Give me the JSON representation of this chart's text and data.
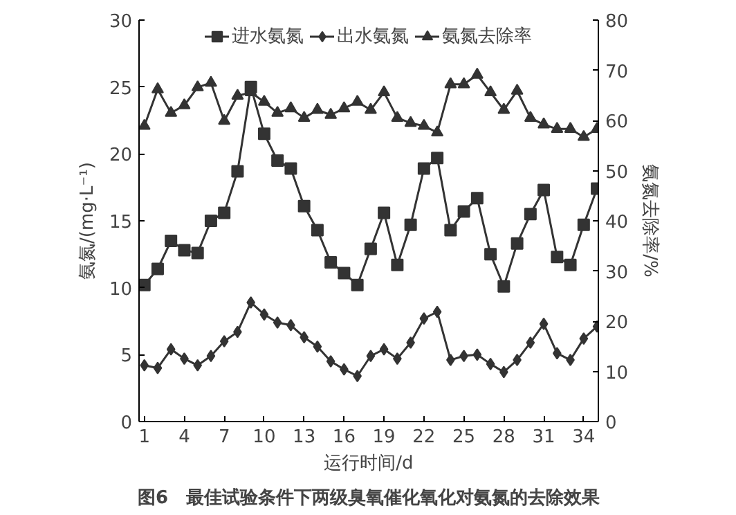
{
  "chart_data": {
    "type": "line",
    "xlabel": "运行时间/d",
    "ylabel": "氨氮/(mg·L⁻¹)",
    "y2label": "氨氮去除率/%",
    "x": [
      1,
      2,
      3,
      4,
      5,
      6,
      7,
      8,
      9,
      10,
      11,
      12,
      13,
      14,
      15,
      16,
      17,
      18,
      19,
      20,
      21,
      22,
      23,
      24,
      25,
      26,
      27,
      28,
      29,
      30,
      31,
      32,
      33,
      34,
      35
    ],
    "xlim": [
      0.6,
      35.1
    ],
    "xticks": [
      1,
      4,
      7,
      10,
      13,
      16,
      19,
      22,
      25,
      28,
      31,
      34
    ],
    "ylim": [
      0,
      30
    ],
    "yticks": [
      0,
      5,
      10,
      15,
      20,
      25,
      30
    ],
    "y2lim": [
      0,
      80
    ],
    "y2ticks": [
      0,
      10,
      20,
      30,
      40,
      50,
      60,
      70,
      80
    ],
    "grid": false,
    "legend": "top",
    "line_style": "solid",
    "annotations": [
      "图6　最佳试验条件下两级臭氧催化氧化对氨氮的去除效果"
    ],
    "series": [
      {
        "name": "进水氨氮",
        "color": "#333333",
        "marker": "square",
        "values": [
          10.2,
          11.4,
          13.5,
          12.8,
          12.6,
          15.0,
          15.6,
          18.7,
          25.0,
          21.5,
          19.5,
          18.9,
          16.1,
          14.3,
          11.9,
          11.1,
          10.2,
          12.9,
          15.6,
          11.7,
          14.7,
          18.9,
          19.7,
          14.3,
          15.7,
          16.7,
          12.5,
          10.1,
          13.3,
          15.5,
          17.3,
          12.3,
          11.7,
          14.7,
          17.4
        ]
      },
      {
        "name": "出水氨氮",
        "color": "#333333",
        "marker": "diamond",
        "values": [
          4.2,
          4.0,
          5.4,
          4.7,
          4.2,
          4.9,
          6.0,
          6.7,
          8.9,
          8.0,
          7.4,
          7.2,
          6.3,
          5.6,
          4.5,
          3.9,
          3.4,
          4.9,
          5.4,
          4.7,
          5.9,
          7.7,
          8.2,
          4.6,
          4.9,
          5.0,
          4.3,
          3.7,
          4.6,
          5.9,
          7.3,
          5.1,
          4.6,
          6.2,
          7.1
        ]
      },
      {
        "name": "氨氮去除率",
        "color": "#333333",
        "marker": "triangle",
        "axis": "y2",
        "values": [
          58.9,
          66.2,
          61.5,
          63.0,
          66.6,
          67.5,
          59.9,
          64.9,
          65.6,
          63.7,
          61.5,
          62.4,
          60.5,
          62.1,
          61.1,
          62.4,
          63.7,
          62.1,
          65.6,
          60.5,
          59.5,
          58.9,
          57.6,
          67.2,
          67.2,
          69.1,
          65.6,
          62.1,
          65.9,
          60.5,
          59.2,
          58.3,
          58.3,
          56.7,
          58.3
        ]
      }
    ]
  }
}
